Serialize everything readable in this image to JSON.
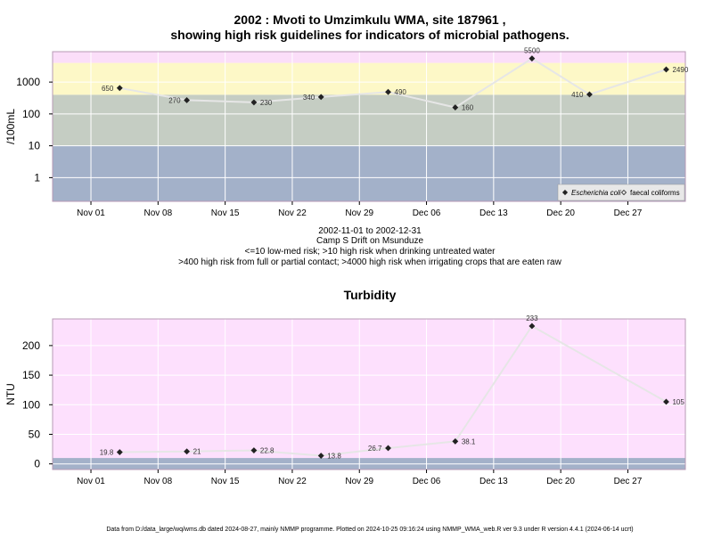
{
  "figure": {
    "title_line1": "2002 : Mvoti to Umzimkulu WMA, site 187961 ,",
    "title_line2": "showing high risk guidelines for indicators of microbial pathogens.",
    "info_lines": [
      "2002-11-01 to 2002-12-31",
      "Camp S Drift on Msunduze",
      "<=10 low-med risk; >10 high risk when drinking untreated water",
      ">400 high risk from full or partial contact; >4000 high risk when irrigating crops that are eaten raw"
    ],
    "footer": "Data from D:/data_large/wq/wms.db dated 2024-08-27, mainly NMMP programme. Plotted on 2024-10-25 09:16:24 using NMMP_WMA_web.R ver 9.3 under R version 4.4.1 (2024-06-14 ucrt)"
  },
  "colors": {
    "low_band": "#a3b1c9",
    "mid_band": "#c5cdc3",
    "high_band": "#fdf8c7",
    "top_band": "#fbdef9",
    "turbidity_bg": "#fde0fd",
    "line": "#e6e6e6",
    "grid": "#ffffff",
    "frame": "#b79ab5",
    "point": "#222222"
  },
  "chart_data": [
    {
      "type": "line",
      "title": "",
      "xlabel": "",
      "ylabel": "/100mL",
      "y_scale": "log",
      "ylim": [
        0.18,
        9000
      ],
      "x_range": [
        "2002-10-28",
        "2003-01-02"
      ],
      "x_ticks": [
        {
          "date": "2002-11-01",
          "label": "Nov 01"
        },
        {
          "date": "2002-11-08",
          "label": "Nov 08"
        },
        {
          "date": "2002-11-15",
          "label": "Nov 15"
        },
        {
          "date": "2002-11-22",
          "label": "Nov 22"
        },
        {
          "date": "2002-11-29",
          "label": "Nov 29"
        },
        {
          "date": "2002-12-06",
          "label": "Dec 06"
        },
        {
          "date": "2002-12-13",
          "label": "Dec 13"
        },
        {
          "date": "2002-12-20",
          "label": "Dec 20"
        },
        {
          "date": "2002-12-27",
          "label": "Dec 27"
        }
      ],
      "y_ticks": [
        {
          "value": 1,
          "label": "1"
        },
        {
          "value": 10,
          "label": "10"
        },
        {
          "value": 100,
          "label": "100"
        },
        {
          "value": 1000,
          "label": "1000"
        }
      ],
      "bands": [
        {
          "from": 0.18,
          "to": 10,
          "color": "#a3b1c9"
        },
        {
          "from": 10,
          "to": 400,
          "color": "#c5cdc3"
        },
        {
          "from": 400,
          "to": 4000,
          "color": "#fdf8c7"
        },
        {
          "from": 4000,
          "to": 9000,
          "color": "#fbdef9"
        }
      ],
      "grid": true,
      "legend_position": "bottom-right",
      "legend": [
        {
          "label": "Escherichia coli",
          "marker": "filled-diamond",
          "italic": true
        },
        {
          "label": "faecal coliforms",
          "marker": "open-diamond",
          "italic": false
        }
      ],
      "series": [
        {
          "name": "Escherichia coli",
          "x": [
            "2002-11-04",
            "2002-11-11",
            "2002-11-18",
            "2002-11-25",
            "2002-12-02",
            "2002-12-09",
            "2002-12-17",
            "2002-12-23",
            "2002-12-31"
          ],
          "y": [
            650,
            270,
            230,
            340,
            490,
            160,
            5500,
            410,
            2490
          ],
          "labels": [
            "650",
            "270",
            "230",
            "340",
            "490",
            "160",
            "5500",
            "410",
            "2490"
          ],
          "label_pos": [
            "left",
            "left",
            "right",
            "left",
            "right",
            "right",
            "above",
            "left",
            "right"
          ]
        }
      ]
    },
    {
      "type": "line",
      "title": "Turbidity",
      "xlabel": "",
      "ylabel": "NTU",
      "y_scale": "linear",
      "ylim": [
        -9.5,
        245
      ],
      "x_range": [
        "2002-10-28",
        "2003-01-02"
      ],
      "x_ticks": [
        {
          "date": "2002-11-01",
          "label": "Nov 01"
        },
        {
          "date": "2002-11-08",
          "label": "Nov 08"
        },
        {
          "date": "2002-11-15",
          "label": "Nov 15"
        },
        {
          "date": "2002-11-22",
          "label": "Nov 22"
        },
        {
          "date": "2002-11-29",
          "label": "Nov 29"
        },
        {
          "date": "2002-12-06",
          "label": "Dec 06"
        },
        {
          "date": "2002-12-13",
          "label": "Dec 13"
        },
        {
          "date": "2002-12-20",
          "label": "Dec 20"
        },
        {
          "date": "2002-12-27",
          "label": "Dec 27"
        }
      ],
      "y_ticks": [
        {
          "value": 0,
          "label": "0"
        },
        {
          "value": 50,
          "label": "50"
        },
        {
          "value": 100,
          "label": "100"
        },
        {
          "value": 150,
          "label": "150"
        },
        {
          "value": 200,
          "label": "200"
        }
      ],
      "bands": [
        {
          "from": -9.5,
          "to": 10,
          "color": "#a3b1c9"
        },
        {
          "from": 10,
          "to": 245,
          "color": "#fde0fd"
        }
      ],
      "grid": true,
      "series": [
        {
          "name": "",
          "x": [
            "2002-11-04",
            "2002-11-11",
            "2002-11-18",
            "2002-11-25",
            "2002-12-02",
            "2002-12-09",
            "2002-12-17",
            "2002-12-31"
          ],
          "y": [
            19.8,
            21,
            22.8,
            13.8,
            26.7,
            38.1,
            233,
            105
          ],
          "labels": [
            "19.8",
            "21",
            "22.8",
            "13.8",
            "26.7",
            "38.1",
            "233",
            "105"
          ],
          "label_pos": [
            "left",
            "right",
            "right",
            "right",
            "left",
            "right",
            "above",
            "right"
          ]
        }
      ]
    }
  ]
}
